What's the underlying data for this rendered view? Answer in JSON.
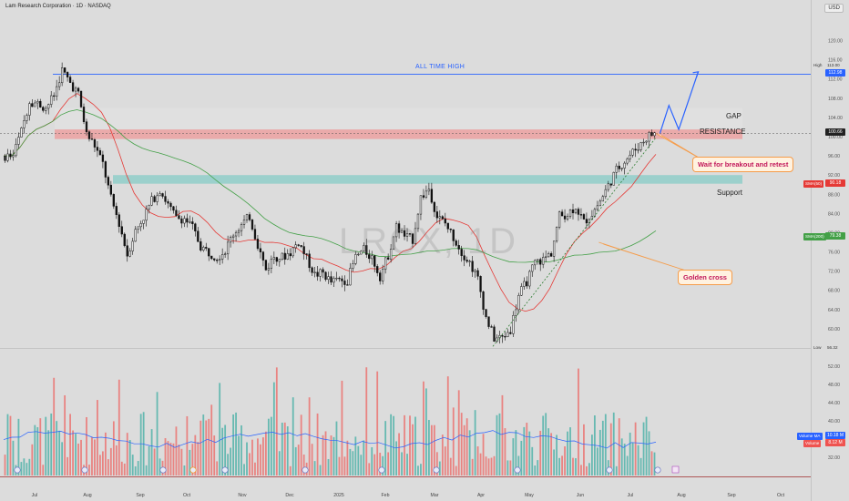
{
  "header": {
    "title": "Lam Research Corporation · 1D · NASDAQ",
    "currency": "USD"
  },
  "watermark": "LRCX, 1D",
  "annotations": {
    "all_time_high": "ALL TIME HIGH",
    "gap": "GAP",
    "resistance": "RESISTANCE",
    "support": "Support",
    "callout_breakout": "Wait for breakout and retest",
    "callout_golden": "Golden cross"
  },
  "price_tags": {
    "high_label": "High",
    "high_value": "113.00",
    "high_current": "112.98",
    "last": "100.66",
    "low_label": "Low",
    "low_value": "56.32",
    "sma50_label": "SMA(50)",
    "sma50_value": "90.18",
    "sma200_label": "SMA(200)",
    "sma200_value": "79.38",
    "volume_ma_label": "Volume MA",
    "volume_ma_value": "10.18 M",
    "volume_label": "Volume",
    "volume_value": "8.12 M"
  },
  "colors": {
    "up": "#26a69a",
    "down": "#ef5350",
    "candle": "#111111",
    "sma50": "#e53935",
    "sma200": "#43a047",
    "ath_line": "#2962ff",
    "resistance_zone": "#ef9a9a",
    "support_zone": "#80cbc4",
    "gap_zone": "#e0e0e0",
    "volume_ma": "#2962ff",
    "callout_border": "#f59c4a"
  },
  "chart_data": {
    "type": "candlestick",
    "title": "Lam Research Corporation · 1D · NASDAQ",
    "x_ticks": [
      "Jul",
      "Aug",
      "Sep",
      "Oct",
      "Nov",
      "Dec",
      "2025",
      "Feb",
      "Mar",
      "Apr",
      "May",
      "Jun",
      "Jul",
      "Aug",
      "Sep",
      "Oct"
    ],
    "price_ticks": [
      120,
      116,
      112,
      108,
      104,
      100,
      96,
      92,
      88,
      84,
      80,
      76,
      72,
      68,
      64,
      60
    ],
    "volume_ticks": [
      52,
      48,
      44,
      40,
      36,
      32
    ],
    "price_axis": {
      "min": 56,
      "max": 122
    },
    "volume_axis": {
      "min": 28,
      "max": 54
    },
    "levels": {
      "all_time_high": 113.0,
      "resistance": [
        99.5,
        101.5
      ],
      "gap": [
        101.5,
        106.0
      ],
      "support": [
        90.2,
        92.0
      ],
      "low": 56.32,
      "last": 100.66
    },
    "series": [
      {
        "name": "SMA(50)",
        "last": 90.18
      },
      {
        "name": "SMA(200)",
        "last": 79.38
      },
      {
        "name": "Volume MA",
        "last": "10.18 M"
      },
      {
        "name": "Volume",
        "last": "8.12 M"
      }
    ],
    "anchors": [
      [
        1,
        96
      ],
      [
        3,
        108
      ],
      [
        5,
        106
      ],
      [
        7,
        113
      ],
      [
        9,
        109
      ],
      [
        10,
        101
      ],
      [
        12,
        94
      ],
      [
        15,
        76
      ],
      [
        17,
        84
      ],
      [
        19,
        89
      ],
      [
        21,
        84
      ],
      [
        24,
        78
      ],
      [
        26,
        74
      ],
      [
        28,
        80
      ],
      [
        30,
        83
      ],
      [
        32,
        73
      ],
      [
        34,
        75
      ],
      [
        36,
        78
      ],
      [
        38,
        72
      ],
      [
        40,
        70
      ],
      [
        42,
        71
      ],
      [
        44,
        77
      ],
      [
        46,
        71
      ],
      [
        48,
        81
      ],
      [
        50,
        78
      ],
      [
        51,
        87
      ],
      [
        52,
        90
      ],
      [
        53,
        84
      ],
      [
        55,
        80
      ],
      [
        57,
        74
      ],
      [
        58,
        70
      ],
      [
        59,
        62
      ],
      [
        60,
        57
      ],
      [
        62,
        60
      ],
      [
        63,
        67
      ],
      [
        65,
        73
      ],
      [
        67,
        76
      ],
      [
        68,
        84
      ],
      [
        70,
        85
      ],
      [
        71,
        83
      ],
      [
        73,
        86
      ],
      [
        75,
        92
      ],
      [
        77,
        96
      ],
      [
        78,
        98
      ],
      [
        79,
        100
      ],
      [
        80,
        100.7
      ]
    ],
    "projection": [
      [
        80.5,
        100.7
      ],
      [
        81.6,
        106.5
      ],
      [
        82.8,
        101.5
      ],
      [
        85.2,
        113.5
      ]
    ],
    "trendline": [
      [
        60,
        56.32
      ],
      [
        80,
        99.8
      ]
    ]
  }
}
